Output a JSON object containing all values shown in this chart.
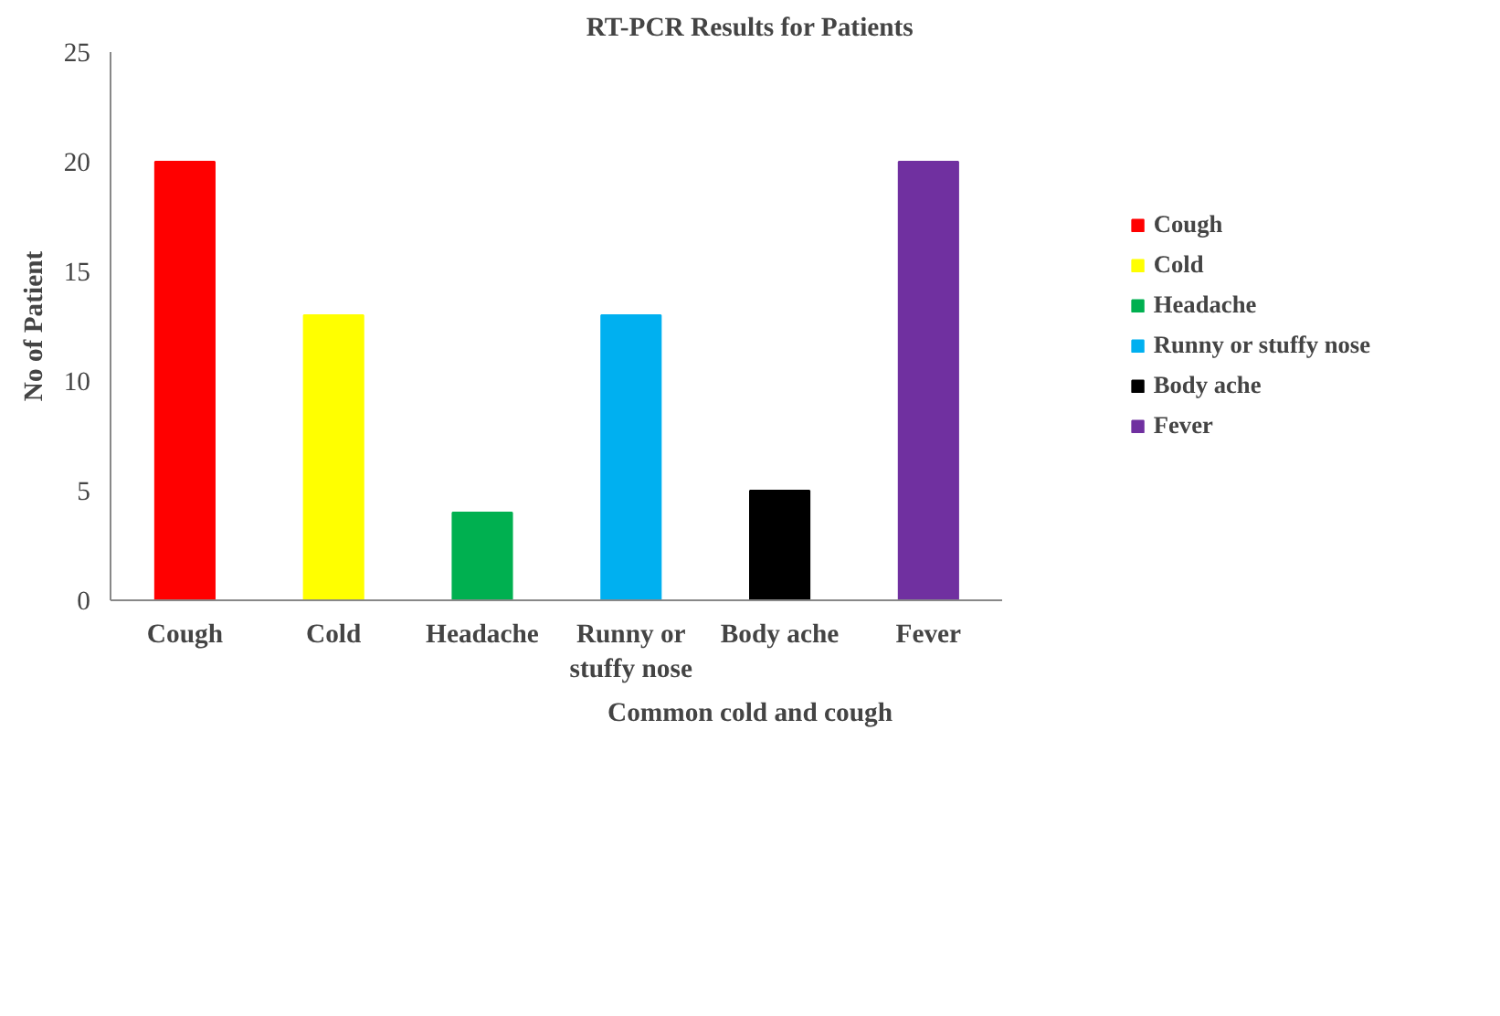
{
  "chart_data": {
    "type": "bar",
    "title": "RT-PCR Results for Patients",
    "xlabel": "Common cold and cough",
    "ylabel": "No of Patient",
    "categories": [
      "Cough",
      "Cold",
      "Headache",
      "Runny or stuffy nose",
      "Body ache",
      "Fever"
    ],
    "series": [
      {
        "name": "Cough",
        "color": "#ff0000",
        "values": [
          20,
          null,
          null,
          null,
          null,
          null
        ]
      },
      {
        "name": "Cold",
        "color": "#ffff00",
        "values": [
          null,
          13,
          null,
          null,
          null,
          null
        ]
      },
      {
        "name": "Headache",
        "color": "#00b050",
        "values": [
          null,
          null,
          4,
          null,
          null,
          null
        ]
      },
      {
        "name": "Runny or stuffy nose",
        "color": "#00b0f0",
        "values": [
          null,
          null,
          null,
          13,
          null,
          null
        ]
      },
      {
        "name": "Body ache",
        "color": "#000000",
        "values": [
          null,
          null,
          null,
          null,
          5,
          null
        ]
      },
      {
        "name": "Fever",
        "color": "#7030a0",
        "values": [
          null,
          null,
          null,
          null,
          null,
          20
        ]
      }
    ],
    "ylim": [
      0,
      25
    ],
    "yticks": [
      0,
      5,
      10,
      15,
      20,
      25
    ],
    "grid": false,
    "legend": "right"
  }
}
